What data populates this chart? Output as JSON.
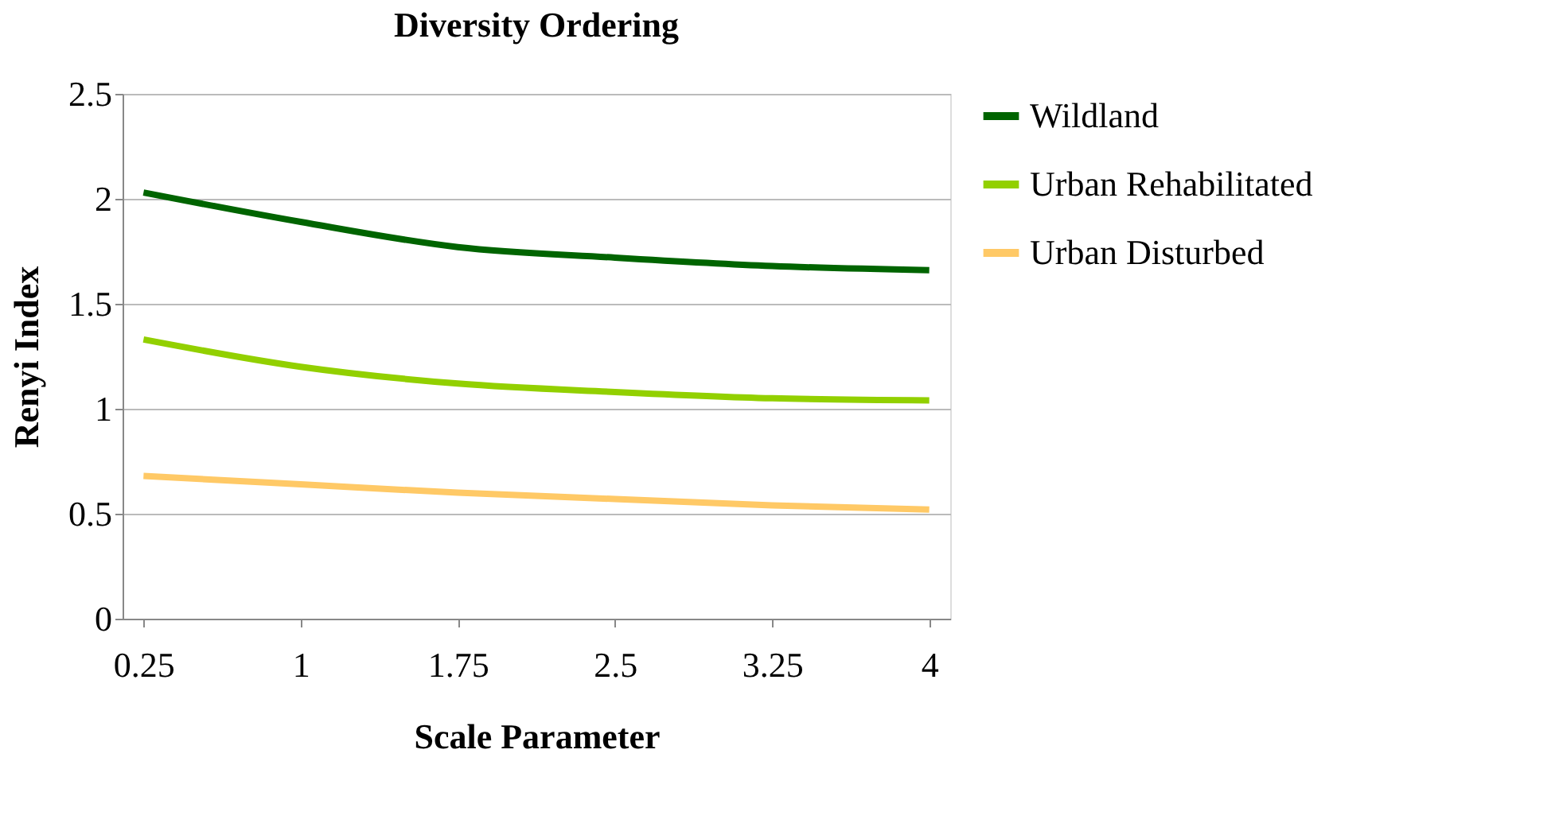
{
  "chart_data": {
    "type": "line",
    "title": "Diversity Ordering",
    "xlabel": "Scale Parameter",
    "ylabel": "Renyi Index",
    "x": [
      0.25,
      1,
      1.75,
      2.5,
      3.25,
      4
    ],
    "series": [
      {
        "name": "Wildland",
        "color": "#006400",
        "values": [
          2.03,
          1.89,
          1.77,
          1.72,
          1.68,
          1.66
        ]
      },
      {
        "name": "Urban Rehabilitated",
        "color": "#92d000",
        "values": [
          1.33,
          1.2,
          1.12,
          1.08,
          1.05,
          1.04
        ]
      },
      {
        "name": "Urban Disturbed",
        "color": "#ffc966",
        "values": [
          0.68,
          0.64,
          0.6,
          0.57,
          0.54,
          0.52
        ]
      }
    ],
    "xlim": [
      0.15,
      4.1
    ],
    "xticks": [
      0.25,
      1,
      1.75,
      2.5,
      3.25,
      4
    ],
    "ylim": [
      0,
      2.5
    ],
    "yticks": [
      0,
      0.5,
      1,
      1.5,
      2,
      2.5
    ],
    "grid": "y",
    "legend": "right",
    "marker": "none",
    "line_style": "solid"
  }
}
